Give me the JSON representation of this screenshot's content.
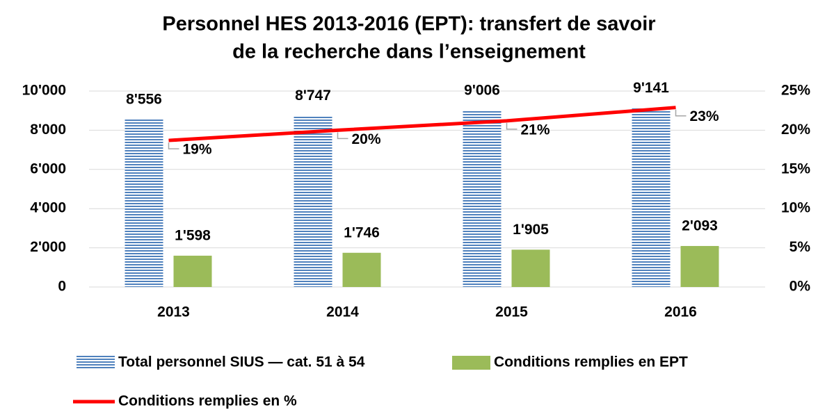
{
  "chart_data": {
    "type": "bar",
    "title": [
      "Personnel HES 2013-2016 (EPT): transfert de savoir",
      "de la recherche dans l’enseignement"
    ],
    "categories": [
      "2013",
      "2014",
      "2015",
      "2016"
    ],
    "series": [
      {
        "name": "Total personnel SIUS — cat. 51 à 54",
        "color": "#4f81bd",
        "type": "bar",
        "values": [
          8556,
          8747,
          9006,
          9141
        ],
        "value_labels": [
          "8'556",
          "8'747",
          "9'006",
          "9'141"
        ]
      },
      {
        "name": "Conditions remplies en EPT",
        "color": "#9bbb59",
        "type": "bar",
        "values": [
          1598,
          1746,
          1905,
          2093
        ],
        "value_labels": [
          "1'598",
          "1'746",
          "1'905",
          "2'093"
        ]
      },
      {
        "name": "Conditions remplies en %",
        "color": "#ff0000",
        "type": "line",
        "axis": "y2",
        "values": [
          18.7,
          20.0,
          21.2,
          22.9
        ],
        "value_labels": [
          "19%",
          "20%",
          "21%",
          "23%"
        ]
      }
    ],
    "ylim": [
      0,
      10000
    ],
    "yticks": [
      0,
      {
        "value": 2000,
        "label": "2'000"
      },
      {
        "value": 4000,
        "label": "4'000"
      },
      {
        "value": 6000,
        "label": "6'000"
      },
      {
        "value": 8000,
        "label": "8'000"
      },
      {
        "value": 10000,
        "label": "10'000"
      }
    ],
    "y2lim": [
      0,
      25
    ],
    "y2ticks": [
      {
        "value": 0,
        "label": "0%"
      },
      {
        "value": 5,
        "label": "5%"
      },
      {
        "value": 10,
        "label": "10%"
      },
      {
        "value": 15,
        "label": "15%"
      },
      {
        "value": 20,
        "label": "20%"
      },
      {
        "value": 25,
        "label": "25%"
      }
    ],
    "grid": true,
    "legend": "bottom"
  }
}
